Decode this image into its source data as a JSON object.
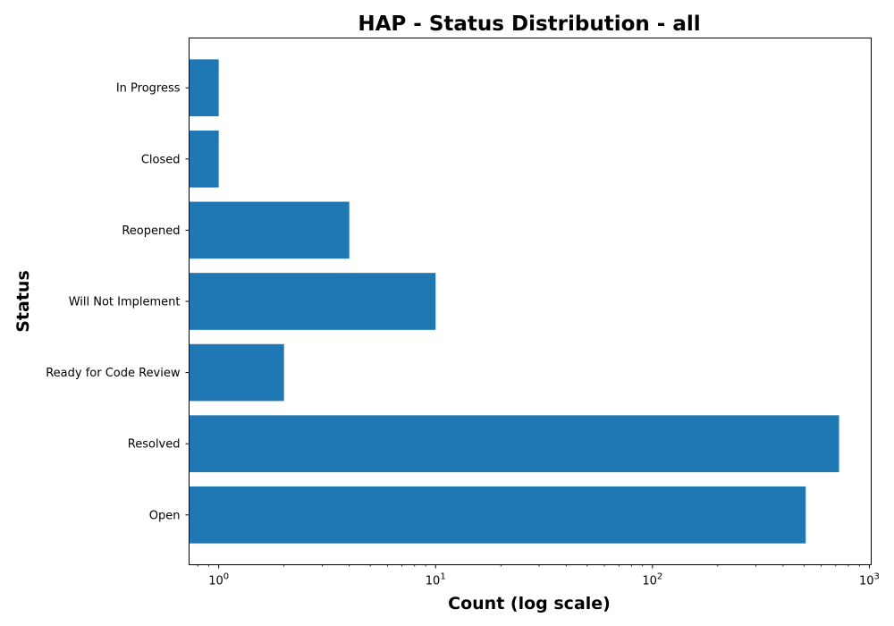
{
  "chart_data": {
    "type": "bar",
    "orientation": "horizontal",
    "title": "HAP - Status Distribution - all",
    "xlabel": "Count (log scale)",
    "ylabel": "Status",
    "xscale": "log",
    "xlim": [
      0.73,
      1020
    ],
    "x_ticks": [
      {
        "value": 1,
        "base": "10",
        "exp": "0"
      },
      {
        "value": 10,
        "base": "10",
        "exp": "1"
      },
      {
        "value": 100,
        "base": "10",
        "exp": "2"
      },
      {
        "value": 1000,
        "base": "10",
        "exp": "3"
      }
    ],
    "categories": [
      "Open",
      "Resolved",
      "Ready for Code Review",
      "Will Not Implement",
      "Reopened",
      "Closed",
      "In Progress"
    ],
    "values": [
      509,
      725,
      2,
      10,
      4,
      1,
      1
    ],
    "bar_color": "#1f77b4",
    "grid": false,
    "legend": "none"
  }
}
